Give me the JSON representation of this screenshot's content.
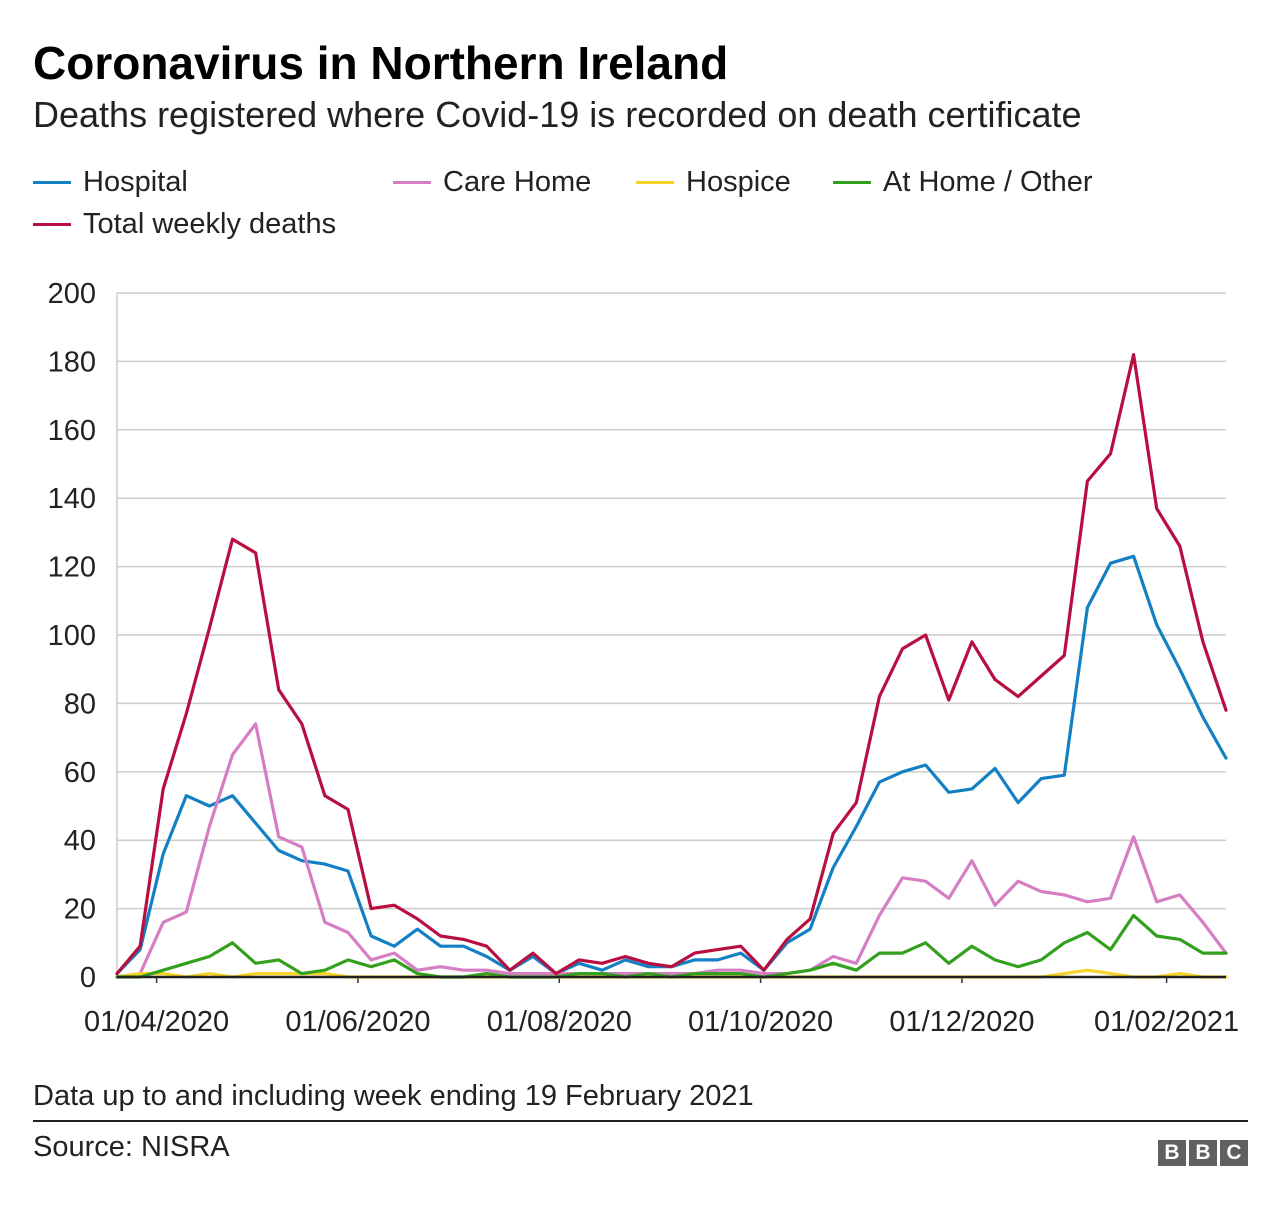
{
  "header": {
    "title": "Coronavirus in Northern Ireland",
    "subtitle": "Deaths registered where Covid-19 is recorded on death certificate"
  },
  "legend": [
    {
      "label": "Hospital",
      "color": "#1380c4"
    },
    {
      "label": "Care Home",
      "color": "#d67ec3"
    },
    {
      "label": "Hospice",
      "color": "#f5d327"
    },
    {
      "label": "At Home / Other",
      "color": "#34a11e"
    },
    {
      "label": "Total weekly deaths",
      "color": "#b80f40"
    }
  ],
  "footer": {
    "note": "Data up to and including week ending 19 February 2021",
    "source": "Source: NISRA",
    "logo": [
      "B",
      "B",
      "C"
    ]
  },
  "chart_data": {
    "type": "line",
    "title": "Coronavirus in Northern Ireland",
    "subtitle": "Deaths registered where Covid-19 is recorded on death certificate",
    "xlabel": "",
    "ylabel": "",
    "ylim": [
      0,
      200
    ],
    "yticks": [
      0,
      20,
      40,
      60,
      80,
      100,
      120,
      140,
      160,
      180,
      200
    ],
    "xticks": [
      "01/04/2020",
      "01/06/2020",
      "01/08/2020",
      "01/10/2020",
      "01/12/2020",
      "01/02/2021"
    ],
    "grid": true,
    "legend_position": "top",
    "x": [
      "2020-03-20",
      "2020-03-27",
      "2020-04-03",
      "2020-04-10",
      "2020-04-17",
      "2020-04-24",
      "2020-05-01",
      "2020-05-08",
      "2020-05-15",
      "2020-05-22",
      "2020-05-29",
      "2020-06-05",
      "2020-06-12",
      "2020-06-19",
      "2020-06-26",
      "2020-07-03",
      "2020-07-10",
      "2020-07-17",
      "2020-07-24",
      "2020-07-31",
      "2020-08-07",
      "2020-08-14",
      "2020-08-21",
      "2020-08-28",
      "2020-09-04",
      "2020-09-11",
      "2020-09-18",
      "2020-09-25",
      "2020-10-02",
      "2020-10-09",
      "2020-10-16",
      "2020-10-23",
      "2020-10-30",
      "2020-11-06",
      "2020-11-13",
      "2020-11-20",
      "2020-11-27",
      "2020-12-04",
      "2020-12-11",
      "2020-12-18",
      "2020-12-25",
      "2021-01-01",
      "2021-01-08",
      "2021-01-15",
      "2021-01-22",
      "2021-01-29",
      "2021-02-05",
      "2021-02-12",
      "2021-02-19"
    ],
    "series": [
      {
        "name": "Hospital",
        "color": "#1380c4",
        "values": [
          1,
          8,
          36,
          53,
          50,
          53,
          45,
          37,
          34,
          33,
          31,
          12,
          9,
          14,
          9,
          9,
          6,
          2,
          6,
          1,
          4,
          2,
          5,
          3,
          3,
          5,
          5,
          7,
          2,
          10,
          14,
          32,
          44,
          57,
          60,
          62,
          54,
          55,
          61,
          51,
          58,
          59,
          108,
          121,
          123,
          103,
          90,
          76,
          64
        ]
      },
      {
        "name": "Care Home",
        "color": "#d67ec3",
        "values": [
          0,
          1,
          16,
          19,
          44,
          65,
          74,
          41,
          38,
          16,
          13,
          5,
          7,
          2,
          3,
          2,
          2,
          1,
          1,
          1,
          1,
          1,
          1,
          1,
          1,
          1,
          2,
          2,
          1,
          1,
          2,
          6,
          4,
          18,
          29,
          28,
          23,
          34,
          21,
          28,
          25,
          24,
          22,
          23,
          41,
          22,
          24,
          16,
          7
        ]
      },
      {
        "name": "Hospice",
        "color": "#f5d327",
        "values": [
          0,
          1,
          1,
          0,
          1,
          0,
          1,
          1,
          1,
          1,
          0,
          0,
          0,
          0,
          0,
          0,
          0,
          0,
          0,
          0,
          0,
          0,
          0,
          0,
          0,
          0,
          0,
          0,
          0,
          0,
          0,
          0,
          0,
          0,
          0,
          0,
          0,
          0,
          0,
          0,
          0,
          1,
          2,
          1,
          0,
          0,
          1,
          0,
          0
        ]
      },
      {
        "name": "At Home / Other",
        "color": "#34a11e",
        "values": [
          0,
          0,
          2,
          4,
          6,
          10,
          4,
          5,
          1,
          2,
          5,
          3,
          5,
          1,
          0,
          0,
          1,
          0,
          0,
          0,
          1,
          1,
          0,
          1,
          0,
          1,
          1,
          1,
          0,
          1,
          2,
          4,
          2,
          7,
          7,
          10,
          4,
          9,
          5,
          3,
          5,
          10,
          13,
          8,
          18,
          12,
          11,
          7,
          7
        ]
      },
      {
        "name": "Total weekly deaths",
        "color": "#b80f40",
        "values": [
          1,
          9,
          55,
          77,
          102,
          128,
          124,
          84,
          74,
          53,
          49,
          20,
          21,
          17,
          12,
          11,
          9,
          2,
          7,
          1,
          5,
          4,
          6,
          4,
          3,
          7,
          8,
          9,
          2,
          11,
          17,
          42,
          51,
          82,
          96,
          100,
          81,
          98,
          87,
          82,
          88,
          94,
          145,
          153,
          182,
          137,
          126,
          98,
          78
        ]
      }
    ]
  }
}
